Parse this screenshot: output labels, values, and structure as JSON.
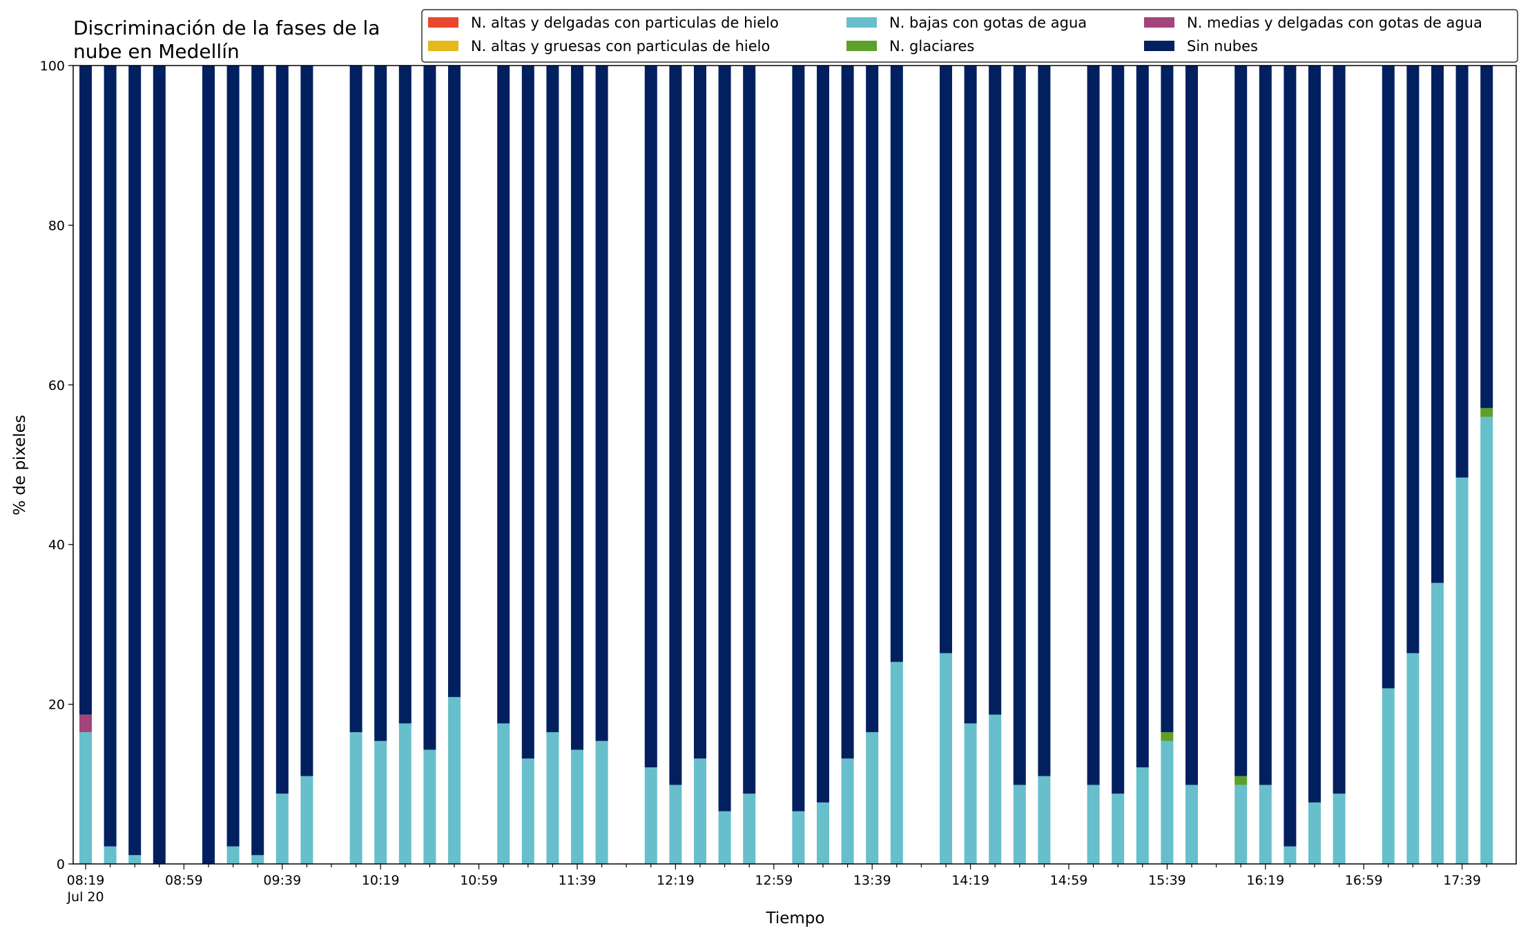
{
  "chart_data": {
    "type": "bar",
    "stacked": true,
    "title_lines": [
      "Discriminación de la fases de la",
      "nube en Medellín"
    ],
    "xlabel": "Tiempo",
    "ylabel": "% de pixeles",
    "ylim": [
      0,
      100
    ],
    "yticks": [
      0,
      20,
      40,
      60,
      80,
      100
    ],
    "grid": false,
    "legend_position": "top",
    "x_start": "08:19",
    "x_step_minutes": 10,
    "x_tick_labels": [
      "08:19",
      "08:59",
      "09:39",
      "10:19",
      "10:59",
      "11:39",
      "12:19",
      "12:59",
      "13:39",
      "14:19",
      "14:59",
      "15:39",
      "16:19",
      "16:59",
      "17:39"
    ],
    "x_tick_date": "Jul 20",
    "categories": [
      "08:19",
      "08:29",
      "08:39",
      "08:49",
      "08:59",
      "09:09",
      "09:19",
      "09:29",
      "09:39",
      "09:49",
      "09:59",
      "10:09",
      "10:19",
      "10:29",
      "10:39",
      "10:49",
      "10:59",
      "11:09",
      "11:19",
      "11:29",
      "11:39",
      "11:49",
      "11:59",
      "12:09",
      "12:19",
      "12:29",
      "12:39",
      "12:49",
      "12:59",
      "13:09",
      "13:19",
      "13:29",
      "13:39",
      "13:49",
      "13:59",
      "14:09",
      "14:19",
      "14:29",
      "14:39",
      "14:49",
      "14:59",
      "15:09",
      "15:19",
      "15:29",
      "15:39",
      "15:49",
      "15:59",
      "16:09",
      "16:19",
      "16:29",
      "16:39",
      "16:49",
      "16:59",
      "17:09",
      "17:19",
      "17:29",
      "17:39",
      "17:49"
    ],
    "present": [
      1,
      1,
      1,
      1,
      0,
      1,
      1,
      1,
      1,
      1,
      0,
      1,
      1,
      1,
      1,
      1,
      0,
      1,
      1,
      1,
      1,
      1,
      0,
      1,
      1,
      1,
      1,
      1,
      0,
      1,
      1,
      1,
      1,
      1,
      0,
      1,
      1,
      1,
      1,
      1,
      0,
      1,
      1,
      1,
      1,
      1,
      0,
      1,
      1,
      1,
      1,
      1,
      0,
      1,
      1,
      1,
      1,
      1
    ],
    "series": [
      {
        "name": "N. altas y delgadas con particulas de hielo",
        "color": "#e8472b",
        "values": [
          0,
          0,
          0,
          0,
          0,
          0,
          0,
          0,
          0,
          0,
          0,
          0,
          0,
          0,
          0,
          0,
          0,
          0,
          0,
          0,
          0,
          0,
          0,
          0,
          0,
          0,
          0,
          0,
          0,
          0,
          0,
          0,
          0,
          0,
          0,
          0,
          0,
          0,
          0,
          0,
          0,
          0,
          0,
          0,
          0,
          0,
          0,
          0,
          0,
          0,
          0,
          0,
          0,
          0,
          0,
          0,
          0,
          0
        ]
      },
      {
        "name": "N. altas y gruesas con particulas de hielo",
        "color": "#e5b81b",
        "values": [
          0,
          0,
          0,
          0,
          0,
          0,
          0,
          0,
          0,
          0,
          0,
          0,
          0,
          0,
          0,
          0,
          0,
          0,
          0,
          0,
          0,
          0,
          0,
          0,
          0,
          0,
          0,
          0,
          0,
          0,
          0,
          0,
          0,
          0,
          0,
          0,
          0,
          0,
          0,
          0,
          0,
          0,
          0,
          0,
          0,
          0,
          0,
          0,
          0,
          0,
          0,
          0,
          0,
          0,
          0,
          0,
          0,
          0
        ]
      },
      {
        "name": "N. bajas con gotas de agua",
        "color": "#67bfcb",
        "values": [
          16.5,
          2.2,
          1.1,
          0,
          0,
          0,
          2.2,
          1.1,
          8.8,
          11,
          0,
          16.5,
          15.4,
          17.6,
          14.3,
          20.9,
          0,
          17.6,
          13.2,
          16.5,
          14.3,
          15.4,
          0,
          12.1,
          9.9,
          13.2,
          6.6,
          8.8,
          0,
          6.6,
          7.7,
          13.2,
          16.5,
          25.3,
          0,
          26.4,
          17.6,
          18.7,
          9.9,
          11,
          0,
          9.9,
          8.8,
          12.1,
          15.4,
          9.9,
          0,
          9.9,
          9.9,
          2.2,
          7.7,
          8.8,
          0,
          22,
          26.4,
          35.2,
          48.4,
          56
        ]
      },
      {
        "name": "N. glaciares",
        "color": "#5c9f2d",
        "values": [
          0,
          0,
          0,
          0,
          0,
          0,
          0,
          0,
          0,
          0,
          0,
          0,
          0,
          0,
          0,
          0,
          0,
          0,
          0,
          0,
          0,
          0,
          0,
          0,
          0,
          0,
          0,
          0,
          0,
          0,
          0,
          0,
          0,
          0,
          0,
          0,
          0,
          0,
          0,
          0,
          0,
          0,
          0,
          0,
          1.1,
          0,
          0,
          1.1,
          0,
          0,
          0,
          0,
          0,
          0,
          0,
          0,
          0,
          1.1
        ]
      },
      {
        "name": "N. medias y delgadas con gotas de agua",
        "color": "#a3457a",
        "values": [
          2.2,
          0,
          0,
          0,
          0,
          0,
          0,
          0,
          0,
          0,
          0,
          0,
          0,
          0,
          0,
          0,
          0,
          0,
          0,
          0,
          0,
          0,
          0,
          0,
          0,
          0,
          0,
          0,
          0,
          0,
          0,
          0,
          0,
          0,
          0,
          0,
          0,
          0,
          0,
          0,
          0,
          0,
          0,
          0,
          0,
          0,
          0,
          0,
          0,
          0,
          0,
          0,
          0,
          0,
          0,
          0,
          0,
          0
        ]
      },
      {
        "name": "Sin nubes",
        "color": "#02205f",
        "values": [
          81.3,
          97.8,
          98.9,
          100,
          0,
          100,
          97.8,
          98.9,
          91.2,
          89,
          0,
          83.5,
          84.6,
          82.4,
          85.7,
          79.1,
          0,
          82.4,
          86.8,
          83.5,
          85.7,
          84.6,
          0,
          87.9,
          90.1,
          86.8,
          93.4,
          91.2,
          0,
          93.4,
          92.3,
          86.8,
          83.5,
          74.7,
          0,
          73.6,
          82.4,
          81.3,
          90.1,
          89,
          0,
          90.1,
          91.2,
          87.9,
          83.5,
          90.1,
          0,
          89,
          90.1,
          97.8,
          92.3,
          91.2,
          0,
          78,
          73.6,
          64.8,
          51.6,
          42.9
        ]
      }
    ],
    "legend_order": [
      0,
      2,
      4,
      1,
      3,
      5
    ]
  }
}
